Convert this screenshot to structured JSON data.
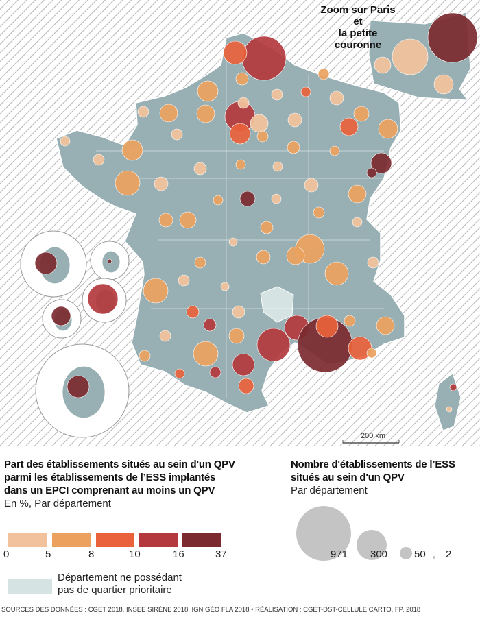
{
  "map": {
    "paris_zoom_title": [
      "Zoom sur Paris et",
      "la petite couronne"
    ],
    "scale_label": "200 km",
    "colors": {
      "hatch": "#b8b8b8",
      "land": "#98b0b4",
      "no_qpv": "#d5e3e3",
      "border": "#ffffff"
    }
  },
  "legend_share": {
    "title": [
      "Part des établissements situés au sein d'un QPV",
      "parmi les établissements de l’ESS implantés",
      "dans un EPCI comprenant au moins un QPV"
    ],
    "subtitle": "En %, Par département",
    "classes": [
      {
        "color": "#f2c29c"
      },
      {
        "color": "#eca25e"
      },
      {
        "color": "#e9623c"
      },
      {
        "color": "#b3393e"
      },
      {
        "color": "#7b2a30"
      }
    ],
    "breaks": [
      "0",
      "5",
      "8",
      "10",
      "16",
      "37"
    ],
    "no_qpv_label": [
      "Département ne possédant",
      "pas de quartier prioritaire"
    ]
  },
  "legend_count": {
    "title": [
      "Nombre d'établissements de l’ESS",
      "situés au sein d'un QPV"
    ],
    "subtitle": "Par département",
    "values": [
      "971",
      "300",
      "50",
      "2"
    ],
    "circle_color": "#c4c4c4"
  },
  "footer": "SOURCES DES DONNÉES : CGET 2018, INSEE SIRÈNE 2018, IGN GÉO FLA 2018 • RÉALISATION : CGET-DST-CELLULE CARTO, FP, 2018"
}
